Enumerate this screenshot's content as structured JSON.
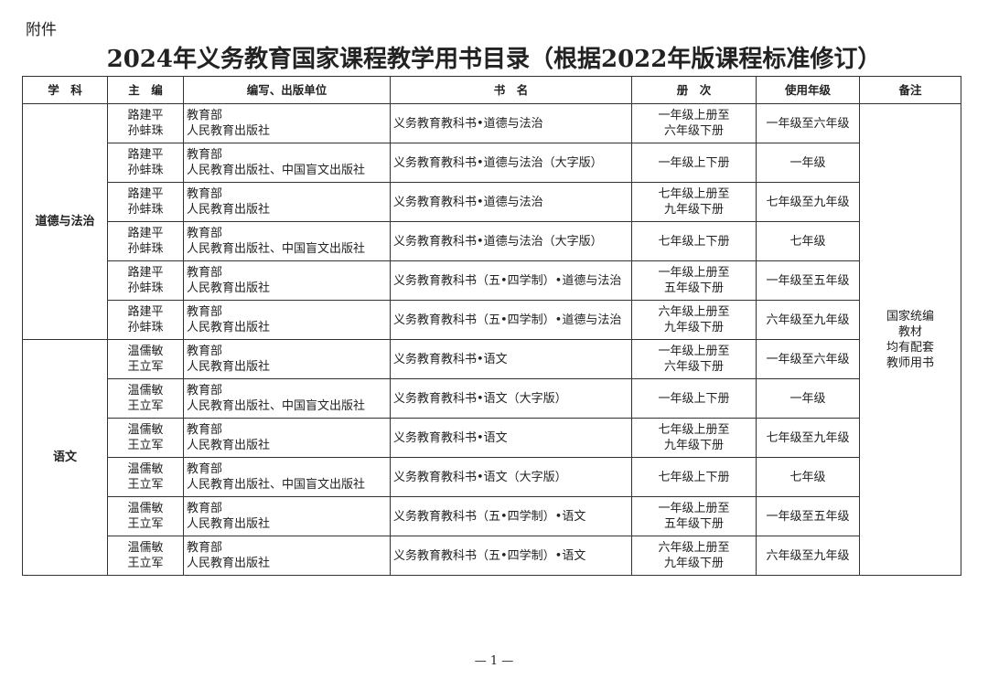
{
  "attachment_label": "附件",
  "title": "2024年义务教育国家课程教学用书目录（根据2022年版课程标准修订）",
  "headers": [
    "学　科",
    "主　编",
    "编写、出版单位",
    "书　名",
    "册　次",
    "使用年级",
    "备注"
  ],
  "remark": [
    "国家统编",
    "教材",
    "均有配套",
    "教师用书"
  ],
  "groups": [
    {
      "subject": "道德与法治",
      "rows": [
        {
          "editors": [
            "路建平",
            "孙蚌珠"
          ],
          "publishers": [
            "教育部",
            "人民教育出版社"
          ],
          "book": "义务教育教科书•道德与法治",
          "volumes": [
            "一年级上册至",
            "六年级下册"
          ],
          "grade": "一年级至六年级"
        },
        {
          "editors": [
            "路建平",
            "孙蚌珠"
          ],
          "publishers": [
            "教育部",
            "人民教育出版社、中国盲文出版社"
          ],
          "book": "义务教育教科书•道德与法治（大字版）",
          "volumes": [
            "一年级上下册"
          ],
          "grade": "一年级"
        },
        {
          "editors": [
            "路建平",
            "孙蚌珠"
          ],
          "publishers": [
            "教育部",
            "人民教育出版社"
          ],
          "book": "义务教育教科书•道德与法治",
          "volumes": [
            "七年级上册至",
            "九年级下册"
          ],
          "grade": "七年级至九年级"
        },
        {
          "editors": [
            "路建平",
            "孙蚌珠"
          ],
          "publishers": [
            "教育部",
            "人民教育出版社、中国盲文出版社"
          ],
          "book": "义务教育教科书•道德与法治（大字版）",
          "volumes": [
            "七年级上下册"
          ],
          "grade": "七年级"
        },
        {
          "editors": [
            "路建平",
            "孙蚌珠"
          ],
          "publishers": [
            "教育部",
            "人民教育出版社"
          ],
          "book": "义务教育教科书（五•四学制）•道德与法治",
          "volumes": [
            "一年级上册至",
            "五年级下册"
          ],
          "grade": "一年级至五年级"
        },
        {
          "editors": [
            "路建平",
            "孙蚌珠"
          ],
          "publishers": [
            "教育部",
            "人民教育出版社"
          ],
          "book": "义务教育教科书（五•四学制）•道德与法治",
          "volumes": [
            "六年级上册至",
            "九年级下册"
          ],
          "grade": "六年级至九年级"
        }
      ]
    },
    {
      "subject": "语文",
      "rows": [
        {
          "editors": [
            "温儒敏",
            "王立军"
          ],
          "publishers": [
            "教育部",
            "人民教育出版社"
          ],
          "book": "义务教育教科书•语文",
          "volumes": [
            "一年级上册至",
            "六年级下册"
          ],
          "grade": "一年级至六年级"
        },
        {
          "editors": [
            "温儒敏",
            "王立军"
          ],
          "publishers": [
            "教育部",
            "人民教育出版社、中国盲文出版社"
          ],
          "book": "义务教育教科书•语文（大字版）",
          "volumes": [
            "一年级上下册"
          ],
          "grade": "一年级"
        },
        {
          "editors": [
            "温儒敏",
            "王立军"
          ],
          "publishers": [
            "教育部",
            "人民教育出版社"
          ],
          "book": "义务教育教科书•语文",
          "volumes": [
            "七年级上册至",
            "九年级下册"
          ],
          "grade": "七年级至九年级"
        },
        {
          "editors": [
            "温儒敏",
            "王立军"
          ],
          "publishers": [
            "教育部",
            "人民教育出版社、中国盲文出版社"
          ],
          "book": "义务教育教科书•语文（大字版）",
          "volumes": [
            "七年级上下册"
          ],
          "grade": "七年级"
        },
        {
          "editors": [
            "温儒敏",
            "王立军"
          ],
          "publishers": [
            "教育部",
            "人民教育出版社"
          ],
          "book": "义务教育教科书（五•四学制）•语文",
          "volumes": [
            "一年级上册至",
            "五年级下册"
          ],
          "grade": "一年级至五年级"
        },
        {
          "editors": [
            "温儒敏",
            "王立军"
          ],
          "publishers": [
            "教育部",
            "人民教育出版社"
          ],
          "book": "义务教育教科书（五•四学制）•语文",
          "volumes": [
            "六年级上册至",
            "九年级下册"
          ],
          "grade": "六年级至九年级"
        }
      ]
    }
  ],
  "page_number": "— 1 —"
}
